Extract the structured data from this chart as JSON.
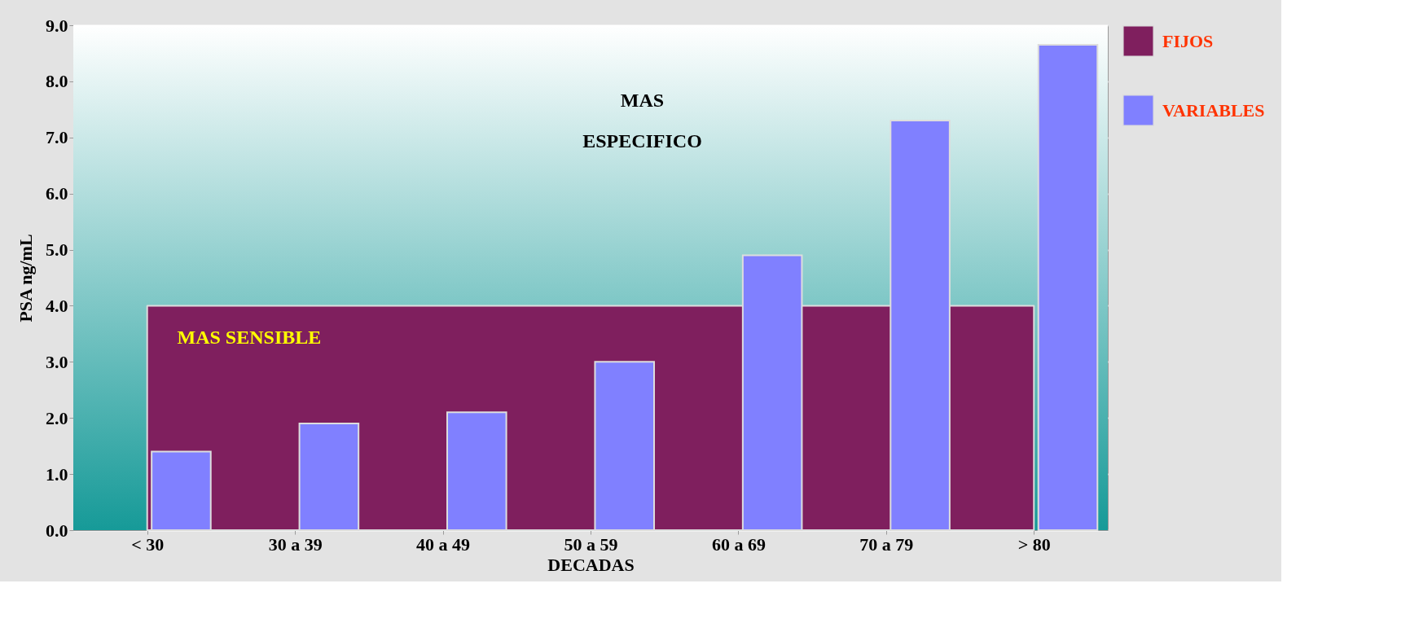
{
  "chart_data": {
    "type": "bar",
    "xlabel": "DECADAS",
    "ylabel": "PSA ng/mL",
    "categories": [
      "< 30",
      "30 a 39",
      "40 a 49",
      "50 a 59",
      "60 a 69",
      "70 a 79",
      "> 80"
    ],
    "series": [
      {
        "name": "FIJOS",
        "type": "area",
        "color": "#7f1f5e",
        "values": [
          4.0,
          4.0,
          4.0,
          4.0,
          4.0,
          4.0,
          4.0
        ]
      },
      {
        "name": "VARIABLES",
        "color": "#8080ff",
        "values": [
          1.4,
          1.9,
          2.1,
          3.0,
          4.9,
          7.3,
          8.65
        ]
      }
    ],
    "ylim": [
      0,
      9
    ],
    "yticks": [
      {
        "value": 0,
        "label": "0.0"
      },
      {
        "value": 1,
        "label": "1.0"
      },
      {
        "value": 2,
        "label": "2.0"
      },
      {
        "value": 3,
        "label": "3.0"
      },
      {
        "value": 4,
        "label": "4.0"
      },
      {
        "value": 5,
        "label": "5.0"
      },
      {
        "value": 6,
        "label": "6.0"
      },
      {
        "value": 7,
        "label": "7.0"
      },
      {
        "value": 8,
        "label": "8.0"
      },
      {
        "value": 9,
        "label": "9.0"
      }
    ],
    "grid": "y",
    "legend": "right",
    "annotations": [
      "MAS",
      "ESPECIFICO",
      "MAS SENSIBLE"
    ]
  }
}
